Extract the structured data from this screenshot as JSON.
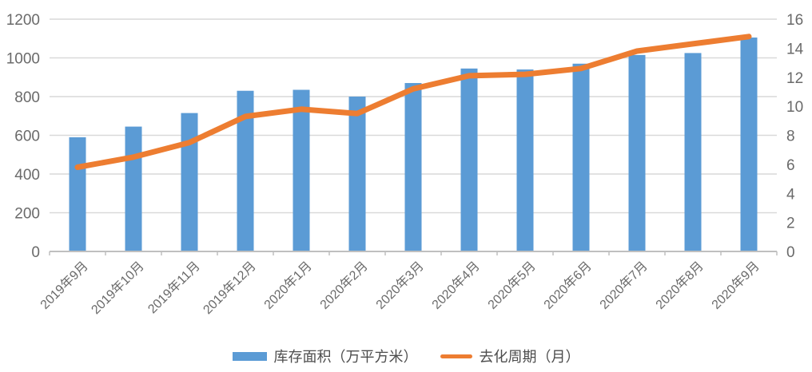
{
  "chart_data": {
    "type": "combo-bar-line",
    "categories": [
      "2019年9月",
      "2019年10月",
      "2019年11月",
      "2019年12月",
      "2020年1月",
      "2020年2月",
      "2020年3月",
      "2020年4月",
      "2020年5月",
      "2020年6月",
      "2020年7月",
      "2020年8月",
      "2020年9月"
    ],
    "series": [
      {
        "name": "库存面积（万平方米）",
        "type": "bar",
        "axis": "left",
        "color": "#5B9BD5",
        "values": [
          590,
          645,
          715,
          830,
          835,
          800,
          870,
          945,
          940,
          970,
          1015,
          1025,
          1105
        ]
      },
      {
        "name": "去化周期（月）",
        "type": "line",
        "axis": "right",
        "color": "#ED7D31",
        "values": [
          5.8,
          6.5,
          7.5,
          9.3,
          9.8,
          9.5,
          11.2,
          12.1,
          12.2,
          12.6,
          13.8,
          14.3,
          14.8
        ]
      }
    ],
    "axes": {
      "left": {
        "min": 0,
        "max": 1200,
        "step": 200,
        "ticks": [
          "0",
          "200",
          "400",
          "600",
          "800",
          "1000",
          "1200"
        ]
      },
      "right": {
        "min": 0,
        "max": 16,
        "step": 2,
        "ticks": [
          "0",
          "2",
          "4",
          "6",
          "8",
          "10",
          "12",
          "14",
          "16"
        ]
      }
    },
    "grid": true,
    "legend_position": "bottom",
    "x_label_rotation_deg": 45,
    "colors": {
      "gridline": "#D9D9D9",
      "axis_line": "#BFBFBF",
      "tick_text": "#6A6A6A",
      "legend_text": "#4D4D4D",
      "background": "#FFFFFF"
    }
  }
}
